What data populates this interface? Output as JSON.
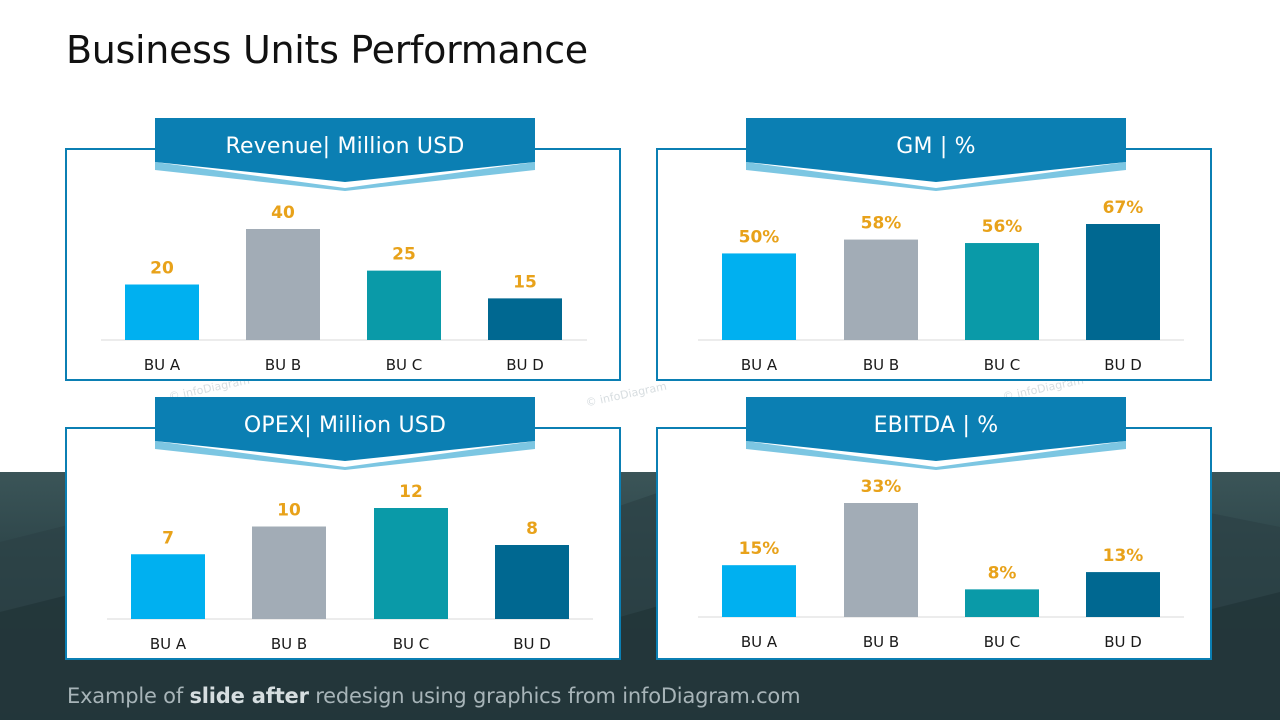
{
  "slide": {
    "title": "Business Units Performance",
    "footer_prefix": "Example of ",
    "footer_bold": "slide after",
    "footer_suffix": " redesign using graphics from infoDiagram.com"
  },
  "colors": {
    "series": [
      "#00b0f0",
      "#a2acb6",
      "#0a9aa8",
      "#006891"
    ],
    "value_label": "#e8a21a",
    "frame": "#0b7fb3",
    "banner": "#0b7fb3",
    "banner_shadow": "#7cc6e2"
  },
  "chart_data": [
    {
      "type": "bar",
      "title": "Revenue| Million USD",
      "categories": [
        "BU A",
        "BU B",
        "BU C",
        "BU D"
      ],
      "values": [
        20,
        40,
        25,
        15
      ],
      "labels": [
        "20",
        "40",
        "25",
        "15"
      ],
      "ylim": [
        0,
        40
      ]
    },
    {
      "type": "bar",
      "title": "GM | %",
      "categories": [
        "BU A",
        "BU B",
        "BU C",
        "BU D"
      ],
      "values": [
        50,
        58,
        56,
        67
      ],
      "labels": [
        "50%",
        "58%",
        "56%",
        "67%"
      ],
      "ylim": [
        0,
        67
      ]
    },
    {
      "type": "bar",
      "title": "OPEX| Million USD",
      "categories": [
        "BU A",
        "BU B",
        "BU C",
        "BU D"
      ],
      "values": [
        7,
        10,
        12,
        8
      ],
      "labels": [
        "7",
        "10",
        "12",
        "8"
      ],
      "ylim": [
        0,
        12
      ]
    },
    {
      "type": "bar",
      "title": "EBITDA | %",
      "categories": [
        "BU A",
        "BU B",
        "BU C",
        "BU D"
      ],
      "values": [
        15,
        33,
        8,
        13
      ],
      "labels": [
        "15%",
        "33%",
        "8%",
        "13%"
      ],
      "ylim": [
        0,
        33
      ]
    }
  ]
}
